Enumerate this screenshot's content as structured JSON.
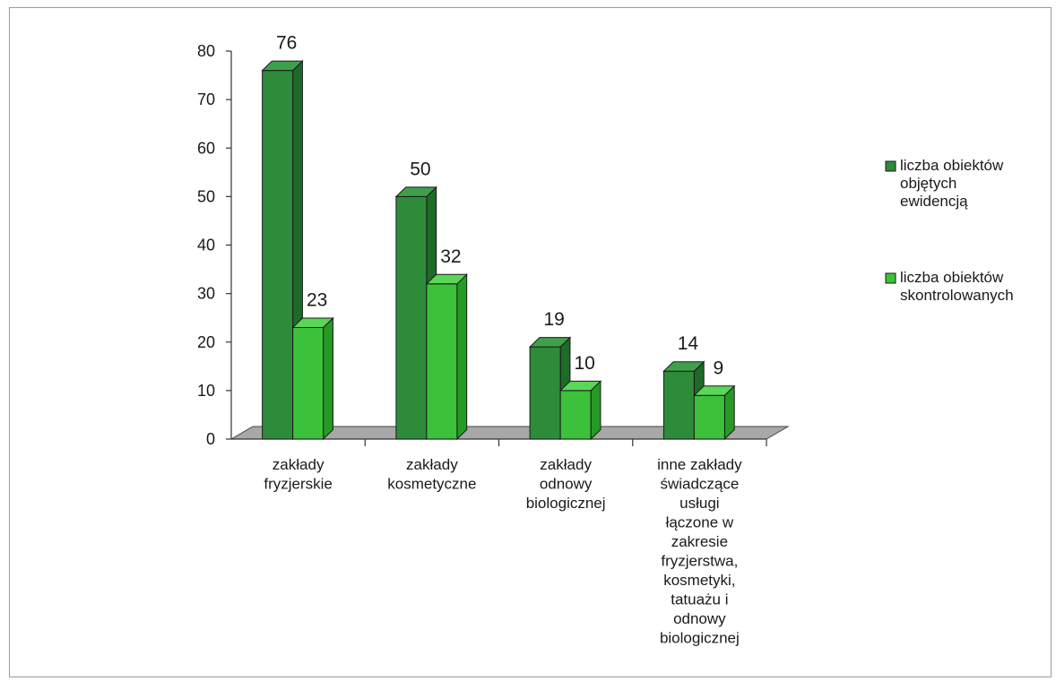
{
  "chart_data": {
    "type": "bar",
    "categories": [
      [
        "zakłady",
        "fryzjerskie"
      ],
      [
        "zakłady",
        "kosmetyczne"
      ],
      [
        "zakłady",
        "odnowy",
        "biologicznej"
      ],
      [
        "inne zakłady",
        "świadczące",
        "usługi",
        "łączone w",
        "zakresie",
        "fryzjerstwa,",
        "kosmetyki,",
        "tatuażu i",
        "odnowy",
        "biologicznej"
      ]
    ],
    "series": [
      {
        "name": [
          "liczba obiektów",
          "objętych",
          "ewidencją"
        ],
        "values": [
          76,
          50,
          19,
          14
        ],
        "color": "#2e8b3a",
        "side": "#1e6a28",
        "top": "#3fa04b"
      },
      {
        "name": [
          "liczba obiektów",
          "skontrolowanych"
        ],
        "values": [
          23,
          32,
          10,
          9
        ],
        "color": "#3cc13a",
        "side": "#279a26",
        "top": "#5ad658"
      }
    ],
    "yticks": [
      "0",
      "10",
      "20",
      "30",
      "40",
      "50",
      "60",
      "70",
      "80"
    ],
    "ylim": [
      0,
      80
    ],
    "legend_position": "right",
    "floor_color": "#a8a8a8"
  }
}
